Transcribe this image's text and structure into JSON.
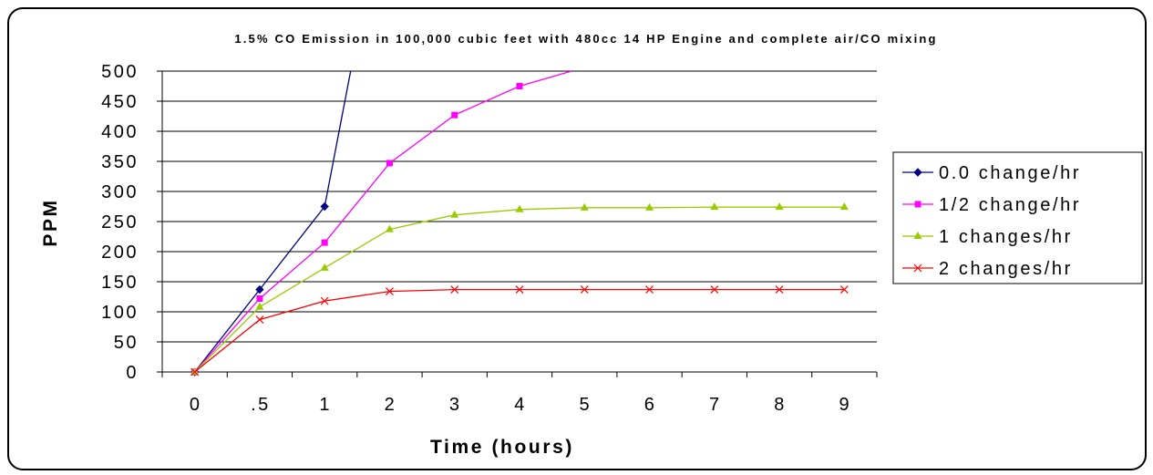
{
  "chart_data": {
    "type": "line",
    "title": "1.5% CO Emission in 100,000 cubic feet with 480cc 14 HP Engine and complete air/CO mixing",
    "xlabel": "Time (hours)",
    "ylabel": "PPM",
    "categories": [
      "0",
      ".5",
      "1",
      "2",
      "3",
      "4",
      "5",
      "6",
      "7",
      "8",
      "9"
    ],
    "ylim": [
      0,
      500
    ],
    "yticks": [
      0,
      50,
      100,
      150,
      200,
      250,
      300,
      350,
      400,
      450,
      500
    ],
    "grid": "horizontal",
    "legend_position": "right",
    "series": [
      {
        "name": "0.0 change/hr",
        "color": "#000080",
        "marker": "diamond",
        "x": [
          0,
          0.5,
          1,
          1.4
        ],
        "values": [
          0,
          137,
          275,
          500
        ]
      },
      {
        "name": "1/2 change/hr",
        "color": "#ff00ff",
        "marker": "square",
        "x": [
          0,
          0.5,
          1,
          2,
          3,
          4,
          4.8
        ],
        "values": [
          0,
          122,
          215,
          347,
          427,
          475,
          500
        ]
      },
      {
        "name": "1 changes/hr",
        "color": "#99cc00",
        "marker": "triangle",
        "x": [
          0,
          0.5,
          1,
          2,
          3,
          4,
          5,
          6,
          7,
          8,
          9
        ],
        "values": [
          0,
          108,
          173,
          237,
          261,
          270,
          273,
          273,
          274,
          274,
          274
        ]
      },
      {
        "name": "2 changes/hr",
        "color": "#ff0000",
        "marker": "x",
        "x": [
          0,
          0.5,
          1,
          2,
          3,
          4,
          5,
          6,
          7,
          8,
          9
        ],
        "values": [
          0,
          87,
          118,
          134,
          137,
          137,
          137,
          137,
          137,
          137,
          137
        ]
      }
    ]
  }
}
